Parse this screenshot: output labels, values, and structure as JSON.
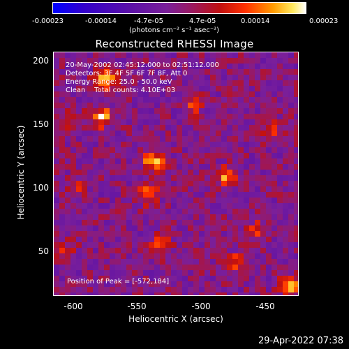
{
  "colorbar": {
    "ticks": [
      "-0.00023",
      "-0.00014",
      "-4.7e-05",
      "4.7e-05",
      "0.00014",
      "0.00023"
    ],
    "units": "(photons cm⁻² s⁻¹ asec⁻²)",
    "colors": [
      "#0000ff",
      "#5a10a8",
      "#7a1f9a",
      "#c01010",
      "#ff9a00",
      "#ffffff"
    ]
  },
  "chart_data": {
    "type": "heatmap",
    "title": "Reconstructed RHESSI Image",
    "xlabel": "Heliocentric X (arcsec)",
    "ylabel": "Heliocentric Y (arcsec)",
    "xlim": [
      -612,
      -423
    ],
    "ylim": [
      14,
      206
    ],
    "x_ticks": [
      "-600",
      "-550",
      "-500",
      "-450"
    ],
    "y_ticks": [
      "200",
      "150",
      "100",
      "50"
    ],
    "value_range": [
      -0.00023,
      0.00023
    ],
    "hot_spots": [
      {
        "x": -572,
        "y": 184,
        "value": 0.00023
      },
      {
        "x": -575,
        "y": 155,
        "value": 0.00018
      },
      {
        "x": -535,
        "y": 120,
        "value": 0.0002
      },
      {
        "x": -540,
        "y": 95,
        "value": 0.00016
      },
      {
        "x": -480,
        "y": 108,
        "value": 0.00014
      },
      {
        "x": -445,
        "y": 145,
        "value": 0.00012
      },
      {
        "x": -600,
        "y": 155,
        "value": 0.00011
      },
      {
        "x": -530,
        "y": 55,
        "value": 0.00012
      },
      {
        "x": -470,
        "y": 40,
        "value": 0.00013
      },
      {
        "x": -430,
        "y": 22,
        "value": 0.00017
      },
      {
        "x": -455,
        "y": 65,
        "value": 0.0001
      },
      {
        "x": -605,
        "y": 50,
        "value": 0.0001
      },
      {
        "x": -505,
        "y": 165,
        "value": 9e-05
      },
      {
        "x": -595,
        "y": 100,
        "value": 9e-05
      }
    ],
    "annotations": [
      "20-May-2002 02:45:12.000 to 02:51:12.000",
      "Detectors: 3F 4F 5F 6F 7F 8F, Att 0",
      "Energy Range: 25.0 - 50.0 keV",
      "Clean    Total counts: 4.10E+03",
      "Position of Peak = [-572,184]"
    ]
  },
  "timestamp": "29-Apr-2022 07:38"
}
